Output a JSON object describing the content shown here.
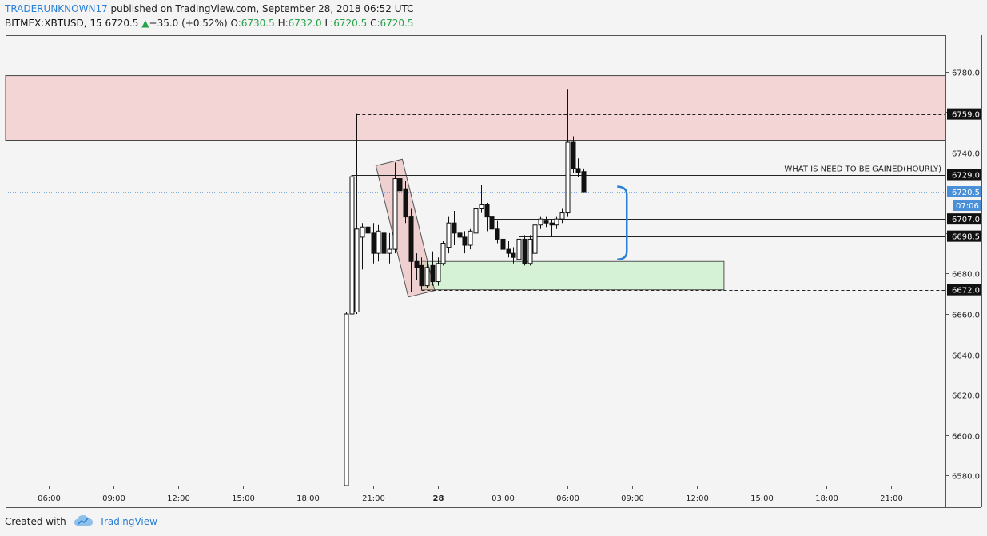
{
  "header": {
    "author": "TRADERUNKNOWN17",
    "published_text": " published on TradingView.com, September 28, 2018 06:52 UTC",
    "symbol": "BITMEX:XBTUSD, 15",
    "last": "6720.5",
    "change": "+35.0 (+0.52%)",
    "o_label": "O:",
    "o_value": "6730.5",
    "h_label": "H:",
    "h_value": "6732.0",
    "l_label": "L:",
    "l_value": "6720.5",
    "c_label": "C:",
    "c_value": "6720.5"
  },
  "footer": {
    "created_with": "Created with",
    "brand": "TradingView"
  },
  "colors": {
    "bull_fill": "#ffffff",
    "bear_fill": "#111111",
    "candle_line": "#111111",
    "supply_zone": "#f4d5d5",
    "demand_zone": "#d6f2d6",
    "accent": "#2a7fd6",
    "price_tag": "#4a90d9"
  },
  "chart_data": {
    "type": "candlestick",
    "title": "",
    "xlabel": "",
    "ylabel": "",
    "ylim": [
      6575,
      6798
    ],
    "yticks": [
      6580,
      6600,
      6620,
      6640,
      6660,
      6680,
      6700,
      6720,
      6740,
      6760,
      6780
    ],
    "ytick_labels": [
      "6580.0",
      "6600.0",
      "6620.0",
      "6640.0",
      "6660.0",
      "6680.0",
      "6700.0",
      "6720.0",
      "6740.0",
      "6760.0",
      "6780.0"
    ],
    "xticks": [
      {
        "t": "2018-09-27 06:00",
        "label": "06:00"
      },
      {
        "t": "2018-09-27 09:00",
        "label": "09:00"
      },
      {
        "t": "2018-09-27 12:00",
        "label": "12:00"
      },
      {
        "t": "2018-09-27 15:00",
        "label": "15:00"
      },
      {
        "t": "2018-09-27 18:00",
        "label": "18:00"
      },
      {
        "t": "2018-09-27 21:00",
        "label": "21:00"
      },
      {
        "t": "2018-09-28 00:00",
        "label": "28"
      },
      {
        "t": "2018-09-28 03:00",
        "label": "03:00"
      },
      {
        "t": "2018-09-28 06:00",
        "label": "06:00"
      },
      {
        "t": "2018-09-28 09:00",
        "label": "09:00"
      },
      {
        "t": "2018-09-28 12:00",
        "label": "12:00"
      },
      {
        "t": "2018-09-28 15:00",
        "label": "15:00"
      },
      {
        "t": "2018-09-28 18:00",
        "label": "18:00"
      },
      {
        "t": "2018-09-28 21:00",
        "label": "21:00"
      }
    ],
    "xlim": [
      "2018-09-27 04:00",
      "2018-09-28 23:30"
    ],
    "candles": [
      {
        "t": "2018-09-27 19:45",
        "o": 6575,
        "h": 6661,
        "l": 6575,
        "c": 6660
      },
      {
        "t": "2018-09-27 20:00",
        "o": 6660,
        "h": 6729,
        "l": 6575,
        "c": 6728
      },
      {
        "t": "2018-09-27 20:15",
        "o": 6661,
        "h": 6759,
        "l": 6660,
        "c": 6702
      },
      {
        "t": "2018-09-27 20:30",
        "o": 6698,
        "h": 6705,
        "l": 6682,
        "c": 6703
      },
      {
        "t": "2018-09-27 20:45",
        "o": 6703,
        "h": 6710,
        "l": 6688,
        "c": 6700
      },
      {
        "t": "2018-09-27 21:00",
        "o": 6700,
        "h": 6705,
        "l": 6685,
        "c": 6690
      },
      {
        "t": "2018-09-27 21:15",
        "o": 6690,
        "h": 6704,
        "l": 6686,
        "c": 6701
      },
      {
        "t": "2018-09-27 21:30",
        "o": 6700,
        "h": 6702,
        "l": 6686,
        "c": 6690
      },
      {
        "t": "2018-09-27 21:45",
        "o": 6690,
        "h": 6700,
        "l": 6685,
        "c": 6692
      },
      {
        "t": "2018-09-27 22:00",
        "o": 6692,
        "h": 6735,
        "l": 6690,
        "c": 6727
      },
      {
        "t": "2018-09-27 22:15",
        "o": 6727,
        "h": 6730,
        "l": 6712,
        "c": 6721
      },
      {
        "t": "2018-09-27 22:30",
        "o": 6722,
        "h": 6726,
        "l": 6705,
        "c": 6708
      },
      {
        "t": "2018-09-27 22:45",
        "o": 6708,
        "h": 6712,
        "l": 6671,
        "c": 6686
      },
      {
        "t": "2018-09-27 23:00",
        "o": 6686,
        "h": 6690,
        "l": 6677,
        "c": 6683
      },
      {
        "t": "2018-09-27 23:15",
        "o": 6684,
        "h": 6688,
        "l": 6672,
        "c": 6674
      },
      {
        "t": "2018-09-27 23:30",
        "o": 6674,
        "h": 6686,
        "l": 6673,
        "c": 6683
      },
      {
        "t": "2018-09-27 23:45",
        "o": 6684,
        "h": 6691,
        "l": 6674,
        "c": 6676
      },
      {
        "t": "2018-09-28 00:00",
        "o": 6676,
        "h": 6688,
        "l": 6674,
        "c": 6685
      },
      {
        "t": "2018-09-28 00:15",
        "o": 6685,
        "h": 6696,
        "l": 6684,
        "c": 6695
      },
      {
        "t": "2018-09-28 00:30",
        "o": 6693,
        "h": 6708,
        "l": 6690,
        "c": 6705
      },
      {
        "t": "2018-09-28 00:45",
        "o": 6705,
        "h": 6711,
        "l": 6694,
        "c": 6700
      },
      {
        "t": "2018-09-28 01:00",
        "o": 6700,
        "h": 6706,
        "l": 6694,
        "c": 6698
      },
      {
        "t": "2018-09-28 01:15",
        "o": 6698,
        "h": 6701,
        "l": 6690,
        "c": 6694
      },
      {
        "t": "2018-09-28 01:30",
        "o": 6694,
        "h": 6702,
        "l": 6692,
        "c": 6701
      },
      {
        "t": "2018-09-28 01:45",
        "o": 6700,
        "h": 6713,
        "l": 6698,
        "c": 6712
      },
      {
        "t": "2018-09-28 02:00",
        "o": 6712,
        "h": 6724,
        "l": 6710,
        "c": 6714
      },
      {
        "t": "2018-09-28 02:15",
        "o": 6714,
        "h": 6715,
        "l": 6701,
        "c": 6708
      },
      {
        "t": "2018-09-28 02:30",
        "o": 6708,
        "h": 6710,
        "l": 6699,
        "c": 6702
      },
      {
        "t": "2018-09-28 02:45",
        "o": 6702,
        "h": 6706,
        "l": 6695,
        "c": 6697
      },
      {
        "t": "2018-09-28 03:00",
        "o": 6697,
        "h": 6700,
        "l": 6691,
        "c": 6692
      },
      {
        "t": "2018-09-28 03:15",
        "o": 6692,
        "h": 6696,
        "l": 6688,
        "c": 6690
      },
      {
        "t": "2018-09-28 03:30",
        "o": 6690,
        "h": 6693,
        "l": 6685,
        "c": 6688
      },
      {
        "t": "2018-09-28 03:45",
        "o": 6687,
        "h": 6698,
        "l": 6685,
        "c": 6697
      },
      {
        "t": "2018-09-28 04:00",
        "o": 6697,
        "h": 6699,
        "l": 6684,
        "c": 6685
      },
      {
        "t": "2018-09-28 04:15",
        "o": 6685,
        "h": 6699,
        "l": 6684,
        "c": 6697
      },
      {
        "t": "2018-09-28 04:30",
        "o": 6690,
        "h": 6705,
        "l": 6688,
        "c": 6704
      },
      {
        "t": "2018-09-28 04:45",
        "o": 6704,
        "h": 6708,
        "l": 6702,
        "c": 6707
      },
      {
        "t": "2018-09-28 05:00",
        "o": 6706,
        "h": 6708,
        "l": 6703,
        "c": 6705
      },
      {
        "t": "2018-09-28 05:15",
        "o": 6705,
        "h": 6707,
        "l": 6698,
        "c": 6704
      },
      {
        "t": "2018-09-28 05:30",
        "o": 6704,
        "h": 6708,
        "l": 6702,
        "c": 6707
      },
      {
        "t": "2018-09-28 05:45",
        "o": 6707,
        "h": 6712,
        "l": 6705,
        "c": 6710
      },
      {
        "t": "2018-09-28 06:00",
        "o": 6710,
        "h": 6771,
        "l": 6708,
        "c": 6745
      },
      {
        "t": "2018-09-28 06:15",
        "o": 6745,
        "h": 6748,
        "l": 6730,
        "c": 6732
      },
      {
        "t": "2018-09-28 06:30",
        "o": 6732,
        "h": 6737,
        "l": 6728,
        "c": 6730
      },
      {
        "t": "2018-09-28 06:45",
        "o": 6730.5,
        "h": 6732,
        "l": 6720.5,
        "c": 6720.5
      }
    ],
    "zones": [
      {
        "name": "supply",
        "from": "2018-09-27 04:00",
        "to": "2018-09-28 23:30",
        "y1": 6746,
        "y2": 6778,
        "color": "#f4d5d5"
      },
      {
        "name": "demand",
        "from": "2018-09-27 23:15",
        "to": "2018-09-28 13:15",
        "y1": 6672,
        "y2": 6686,
        "color": "#d6f2d6"
      }
    ],
    "hlines": [
      {
        "price": 6759,
        "label": "6759.0",
        "style": "dashed",
        "from": "2018-09-27 20:15"
      },
      {
        "price": 6729,
        "label": "6729.0",
        "style": "solid",
        "from": "2018-09-27 20:00"
      },
      {
        "price": 6707,
        "label": "6707.0",
        "style": "solid",
        "from": "2018-09-28 02:30"
      },
      {
        "price": 6698.5,
        "label": "6698.5",
        "style": "solid",
        "from": "2018-09-28 03:45"
      },
      {
        "price": 6672,
        "label": "6672.0",
        "style": "dashed",
        "from": "2018-09-27 23:15"
      }
    ],
    "annotation": {
      "text": "WHAT IS NEED TO BE GAINED(HOURLY)",
      "price": 6729
    },
    "bracket": {
      "t": "2018-09-28 08:45",
      "top": 6723,
      "bottom": 6687
    },
    "pullback_box": {
      "t1": "2018-09-27 21:45",
      "p1": 6735,
      "t2": "2018-09-27 23:15",
      "p2": 6670
    },
    "last_price": {
      "value": 6720.5,
      "label": "6720.5",
      "countdown": "07:06"
    }
  }
}
